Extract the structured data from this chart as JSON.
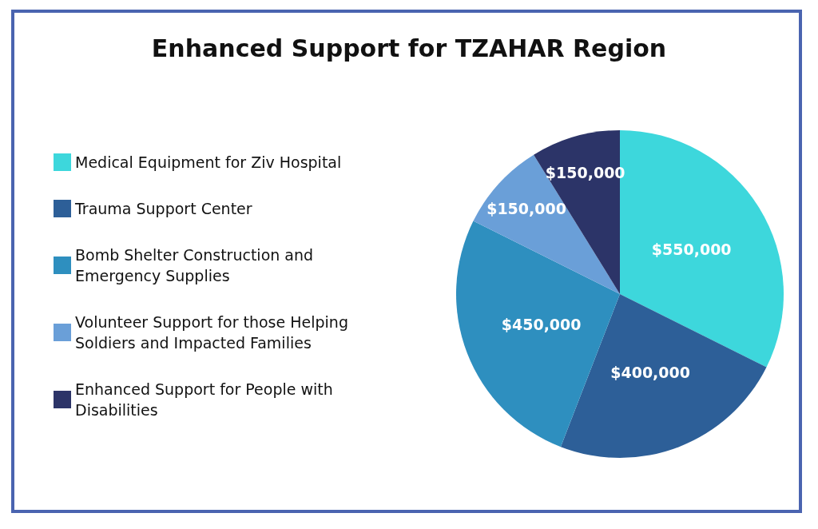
{
  "chart_data": {
    "type": "pie",
    "title": "Enhanced Support for TZAHAR Region",
    "categories": [
      "Medical Equipment for Ziv Hospital",
      "Trauma Support Center",
      "Bomb Shelter Construction and Emergency Supplies",
      "Volunteer Support for those Helping Soldiers and Impacted Families",
      "Enhanced Support for People with Disabilities"
    ],
    "values": [
      550000,
      400000,
      450000,
      150000,
      150000
    ],
    "value_labels": [
      "$550,000",
      "$400,000",
      "$450,000",
      "$150,000",
      "$150,000"
    ],
    "colors": [
      "#3dd7dc",
      "#2d5f98",
      "#2e8fbf",
      "#6a9fd8",
      "#2c3468"
    ],
    "legend": "left"
  }
}
